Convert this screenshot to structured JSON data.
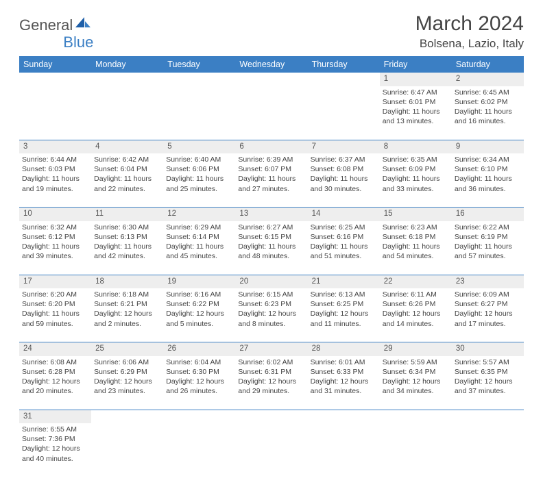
{
  "logo": {
    "text1": "General",
    "text2": "Blue"
  },
  "title": "March 2024",
  "location": "Bolsena, Lazio, Italy",
  "theme": {
    "header_bg": "#3b7fc4",
    "header_fg": "#ffffff",
    "daynum_bg": "#eeeeee",
    "text": "#444444"
  },
  "dayHeaders": [
    "Sunday",
    "Monday",
    "Tuesday",
    "Wednesday",
    "Thursday",
    "Friday",
    "Saturday"
  ],
  "weeks": [
    [
      null,
      null,
      null,
      null,
      null,
      {
        "n": "1",
        "sr": "Sunrise: 6:47 AM",
        "ss": "Sunset: 6:01 PM",
        "d1": "Daylight: 11 hours",
        "d2": "and 13 minutes."
      },
      {
        "n": "2",
        "sr": "Sunrise: 6:45 AM",
        "ss": "Sunset: 6:02 PM",
        "d1": "Daylight: 11 hours",
        "d2": "and 16 minutes."
      }
    ],
    [
      {
        "n": "3",
        "sr": "Sunrise: 6:44 AM",
        "ss": "Sunset: 6:03 PM",
        "d1": "Daylight: 11 hours",
        "d2": "and 19 minutes."
      },
      {
        "n": "4",
        "sr": "Sunrise: 6:42 AM",
        "ss": "Sunset: 6:04 PM",
        "d1": "Daylight: 11 hours",
        "d2": "and 22 minutes."
      },
      {
        "n": "5",
        "sr": "Sunrise: 6:40 AM",
        "ss": "Sunset: 6:06 PM",
        "d1": "Daylight: 11 hours",
        "d2": "and 25 minutes."
      },
      {
        "n": "6",
        "sr": "Sunrise: 6:39 AM",
        "ss": "Sunset: 6:07 PM",
        "d1": "Daylight: 11 hours",
        "d2": "and 27 minutes."
      },
      {
        "n": "7",
        "sr": "Sunrise: 6:37 AM",
        "ss": "Sunset: 6:08 PM",
        "d1": "Daylight: 11 hours",
        "d2": "and 30 minutes."
      },
      {
        "n": "8",
        "sr": "Sunrise: 6:35 AM",
        "ss": "Sunset: 6:09 PM",
        "d1": "Daylight: 11 hours",
        "d2": "and 33 minutes."
      },
      {
        "n": "9",
        "sr": "Sunrise: 6:34 AM",
        "ss": "Sunset: 6:10 PM",
        "d1": "Daylight: 11 hours",
        "d2": "and 36 minutes."
      }
    ],
    [
      {
        "n": "10",
        "sr": "Sunrise: 6:32 AM",
        "ss": "Sunset: 6:12 PM",
        "d1": "Daylight: 11 hours",
        "d2": "and 39 minutes."
      },
      {
        "n": "11",
        "sr": "Sunrise: 6:30 AM",
        "ss": "Sunset: 6:13 PM",
        "d1": "Daylight: 11 hours",
        "d2": "and 42 minutes."
      },
      {
        "n": "12",
        "sr": "Sunrise: 6:29 AM",
        "ss": "Sunset: 6:14 PM",
        "d1": "Daylight: 11 hours",
        "d2": "and 45 minutes."
      },
      {
        "n": "13",
        "sr": "Sunrise: 6:27 AM",
        "ss": "Sunset: 6:15 PM",
        "d1": "Daylight: 11 hours",
        "d2": "and 48 minutes."
      },
      {
        "n": "14",
        "sr": "Sunrise: 6:25 AM",
        "ss": "Sunset: 6:16 PM",
        "d1": "Daylight: 11 hours",
        "d2": "and 51 minutes."
      },
      {
        "n": "15",
        "sr": "Sunrise: 6:23 AM",
        "ss": "Sunset: 6:18 PM",
        "d1": "Daylight: 11 hours",
        "d2": "and 54 minutes."
      },
      {
        "n": "16",
        "sr": "Sunrise: 6:22 AM",
        "ss": "Sunset: 6:19 PM",
        "d1": "Daylight: 11 hours",
        "d2": "and 57 minutes."
      }
    ],
    [
      {
        "n": "17",
        "sr": "Sunrise: 6:20 AM",
        "ss": "Sunset: 6:20 PM",
        "d1": "Daylight: 11 hours",
        "d2": "and 59 minutes."
      },
      {
        "n": "18",
        "sr": "Sunrise: 6:18 AM",
        "ss": "Sunset: 6:21 PM",
        "d1": "Daylight: 12 hours",
        "d2": "and 2 minutes."
      },
      {
        "n": "19",
        "sr": "Sunrise: 6:16 AM",
        "ss": "Sunset: 6:22 PM",
        "d1": "Daylight: 12 hours",
        "d2": "and 5 minutes."
      },
      {
        "n": "20",
        "sr": "Sunrise: 6:15 AM",
        "ss": "Sunset: 6:23 PM",
        "d1": "Daylight: 12 hours",
        "d2": "and 8 minutes."
      },
      {
        "n": "21",
        "sr": "Sunrise: 6:13 AM",
        "ss": "Sunset: 6:25 PM",
        "d1": "Daylight: 12 hours",
        "d2": "and 11 minutes."
      },
      {
        "n": "22",
        "sr": "Sunrise: 6:11 AM",
        "ss": "Sunset: 6:26 PM",
        "d1": "Daylight: 12 hours",
        "d2": "and 14 minutes."
      },
      {
        "n": "23",
        "sr": "Sunrise: 6:09 AM",
        "ss": "Sunset: 6:27 PM",
        "d1": "Daylight: 12 hours",
        "d2": "and 17 minutes."
      }
    ],
    [
      {
        "n": "24",
        "sr": "Sunrise: 6:08 AM",
        "ss": "Sunset: 6:28 PM",
        "d1": "Daylight: 12 hours",
        "d2": "and 20 minutes."
      },
      {
        "n": "25",
        "sr": "Sunrise: 6:06 AM",
        "ss": "Sunset: 6:29 PM",
        "d1": "Daylight: 12 hours",
        "d2": "and 23 minutes."
      },
      {
        "n": "26",
        "sr": "Sunrise: 6:04 AM",
        "ss": "Sunset: 6:30 PM",
        "d1": "Daylight: 12 hours",
        "d2": "and 26 minutes."
      },
      {
        "n": "27",
        "sr": "Sunrise: 6:02 AM",
        "ss": "Sunset: 6:31 PM",
        "d1": "Daylight: 12 hours",
        "d2": "and 29 minutes."
      },
      {
        "n": "28",
        "sr": "Sunrise: 6:01 AM",
        "ss": "Sunset: 6:33 PM",
        "d1": "Daylight: 12 hours",
        "d2": "and 31 minutes."
      },
      {
        "n": "29",
        "sr": "Sunrise: 5:59 AM",
        "ss": "Sunset: 6:34 PM",
        "d1": "Daylight: 12 hours",
        "d2": "and 34 minutes."
      },
      {
        "n": "30",
        "sr": "Sunrise: 5:57 AM",
        "ss": "Sunset: 6:35 PM",
        "d1": "Daylight: 12 hours",
        "d2": "and 37 minutes."
      }
    ],
    [
      {
        "n": "31",
        "sr": "Sunrise: 6:55 AM",
        "ss": "Sunset: 7:36 PM",
        "d1": "Daylight: 12 hours",
        "d2": "and 40 minutes."
      },
      null,
      null,
      null,
      null,
      null,
      null
    ]
  ]
}
